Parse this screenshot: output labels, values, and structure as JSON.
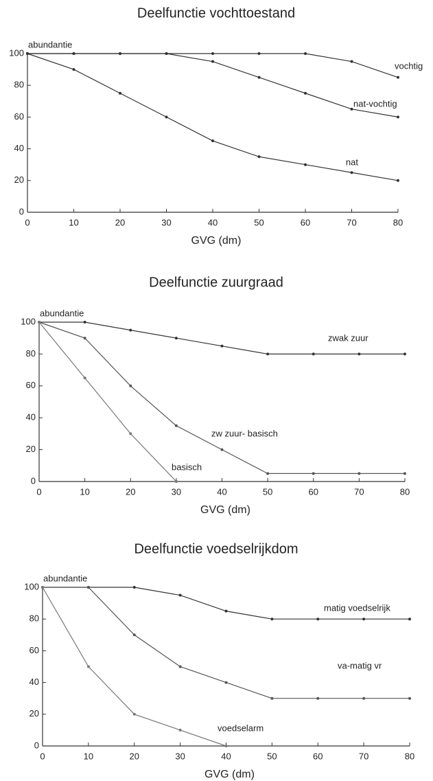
{
  "chart_data": [
    {
      "type": "line",
      "title": "Deelfunctie vochttoestand",
      "y_label": "abundantie",
      "x_label": "GVG (dm)",
      "x": [
        0,
        10,
        20,
        30,
        40,
        50,
        60,
        70,
        80
      ],
      "xlim": [
        0,
        80
      ],
      "xticks": [
        0,
        10,
        20,
        30,
        40,
        50,
        60,
        70,
        80
      ],
      "ylim": [
        0,
        100
      ],
      "yticks": [
        0,
        20,
        40,
        60,
        80,
        100
      ],
      "series": [
        {
          "name": "vochtig",
          "color": "#333333",
          "values": [
            100,
            100,
            100,
            100,
            100,
            100,
            100,
            95,
            85
          ]
        },
        {
          "name": "nat-vochtig",
          "color": "#333333",
          "values": [
            100,
            100,
            100,
            100,
            95,
            85,
            75,
            65,
            60
          ]
        },
        {
          "name": "nat",
          "color": "#333333",
          "values": [
            100,
            90,
            75,
            60,
            45,
            35,
            30,
            25,
            20
          ]
        }
      ]
    },
    {
      "type": "line",
      "title": "Deelfunctie zuurgraad",
      "y_label": "abundantie",
      "x_label": "GVG (dm)",
      "x": [
        0,
        10,
        20,
        30,
        40,
        50,
        60,
        70,
        80
      ],
      "xlim": [
        0,
        80
      ],
      "xticks": [
        0,
        10,
        20,
        30,
        40,
        50,
        60,
        70,
        80
      ],
      "ylim": [
        0,
        100
      ],
      "yticks": [
        0,
        20,
        40,
        60,
        80,
        100
      ],
      "series": [
        {
          "name": "zwak zuur",
          "color": "#333333",
          "values": [
            100,
            100,
            95,
            90,
            85,
            80,
            80,
            80,
            80
          ]
        },
        {
          "name": "zw zuur- basisch",
          "color": "#555555",
          "values": [
            100,
            90,
            60,
            35,
            20,
            5,
            5,
            5,
            5
          ]
        },
        {
          "name": "basisch",
          "color": "#777777",
          "values": [
            100,
            65,
            30,
            0,
            null,
            null,
            null,
            null,
            null
          ]
        }
      ]
    },
    {
      "type": "line",
      "title": "Deelfunctie voedselrijkdom",
      "y_label": "abundantie",
      "x_label": "GVG (dm)",
      "x": [
        0,
        10,
        20,
        30,
        40,
        50,
        60,
        70,
        80
      ],
      "xlim": [
        0,
        80
      ],
      "xticks": [
        0,
        10,
        20,
        30,
        40,
        50,
        60,
        70,
        80
      ],
      "ylim": [
        0,
        100
      ],
      "yticks": [
        0,
        20,
        40,
        60,
        80,
        100
      ],
      "series": [
        {
          "name": "matig voedselrijk",
          "color": "#333333",
          "values": [
            100,
            100,
            100,
            95,
            85,
            80,
            80,
            80,
            80
          ]
        },
        {
          "name": "va-matig vr",
          "color": "#555555",
          "values": [
            100,
            100,
            70,
            50,
            40,
            30,
            30,
            30,
            30
          ]
        },
        {
          "name": "voedselarm",
          "color": "#777777",
          "values": [
            100,
            50,
            20,
            10,
            0,
            null,
            null,
            null,
            null
          ]
        }
      ]
    }
  ]
}
